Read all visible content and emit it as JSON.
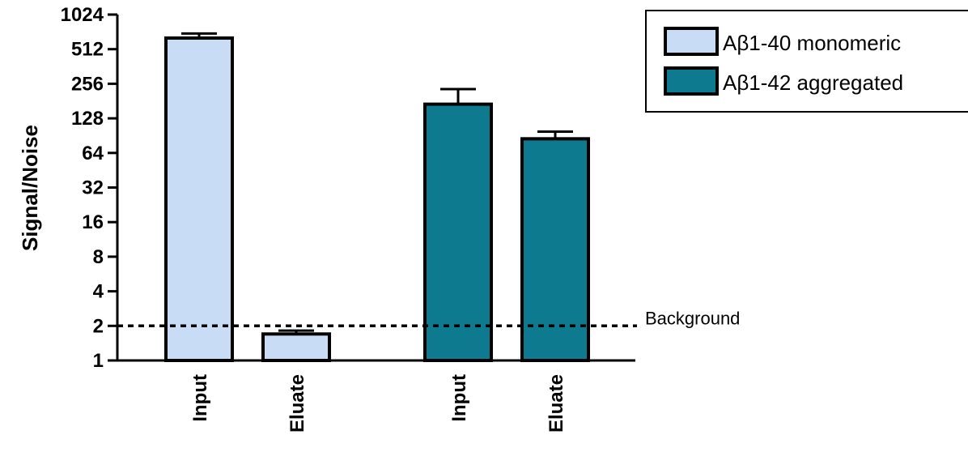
{
  "chart_data": {
    "type": "bar",
    "ylabel": "Signal/Noise",
    "y_scale": "log2",
    "ylim": [
      1,
      1024
    ],
    "y_ticks": [
      "1",
      "2",
      "4",
      "8",
      "16",
      "32",
      "64",
      "128",
      "256",
      "512",
      "1024"
    ],
    "y_tick_values": [
      1,
      2,
      4,
      8,
      16,
      32,
      64,
      128,
      256,
      512,
      1024
    ],
    "categories": [
      "Input",
      "Eluate",
      "Input",
      "Eluate"
    ],
    "series": [
      {
        "name": "Aβ1-40 monomeric",
        "color": "#c9dcf5",
        "values": [
          640,
          null,
          null,
          null
        ],
        "values_full": [
          640,
          1.7
        ],
        "errors": [
          60,
          0.12
        ]
      },
      {
        "name": "Aβ1-42 aggregated",
        "color": "#0e7a8f",
        "values_full": [
          170,
          85
        ],
        "errors": [
          60,
          13
        ]
      }
    ],
    "bars": [
      {
        "category": "Input",
        "series": "Aβ1-40 monomeric",
        "value": 640,
        "error": 60
      },
      {
        "category": "Eluate",
        "series": "Aβ1-40 monomeric",
        "value": 1.7,
        "error": 0.12
      },
      {
        "category": "Input",
        "series": "Aβ1-42 aggregated",
        "value": 170,
        "error": 60
      },
      {
        "category": "Eluate",
        "series": "Aβ1-42 aggregated",
        "value": 85,
        "error": 13
      }
    ],
    "reference_line": {
      "value": 2,
      "label": "Background",
      "style": "dashed"
    },
    "legend": {
      "position": "top-right",
      "items": [
        {
          "label": "Aβ1-40 monomeric",
          "color": "#c9dcf5"
        },
        {
          "label": "Aβ1-42 aggregated",
          "color": "#0e7a8f"
        }
      ]
    },
    "grid": false
  }
}
